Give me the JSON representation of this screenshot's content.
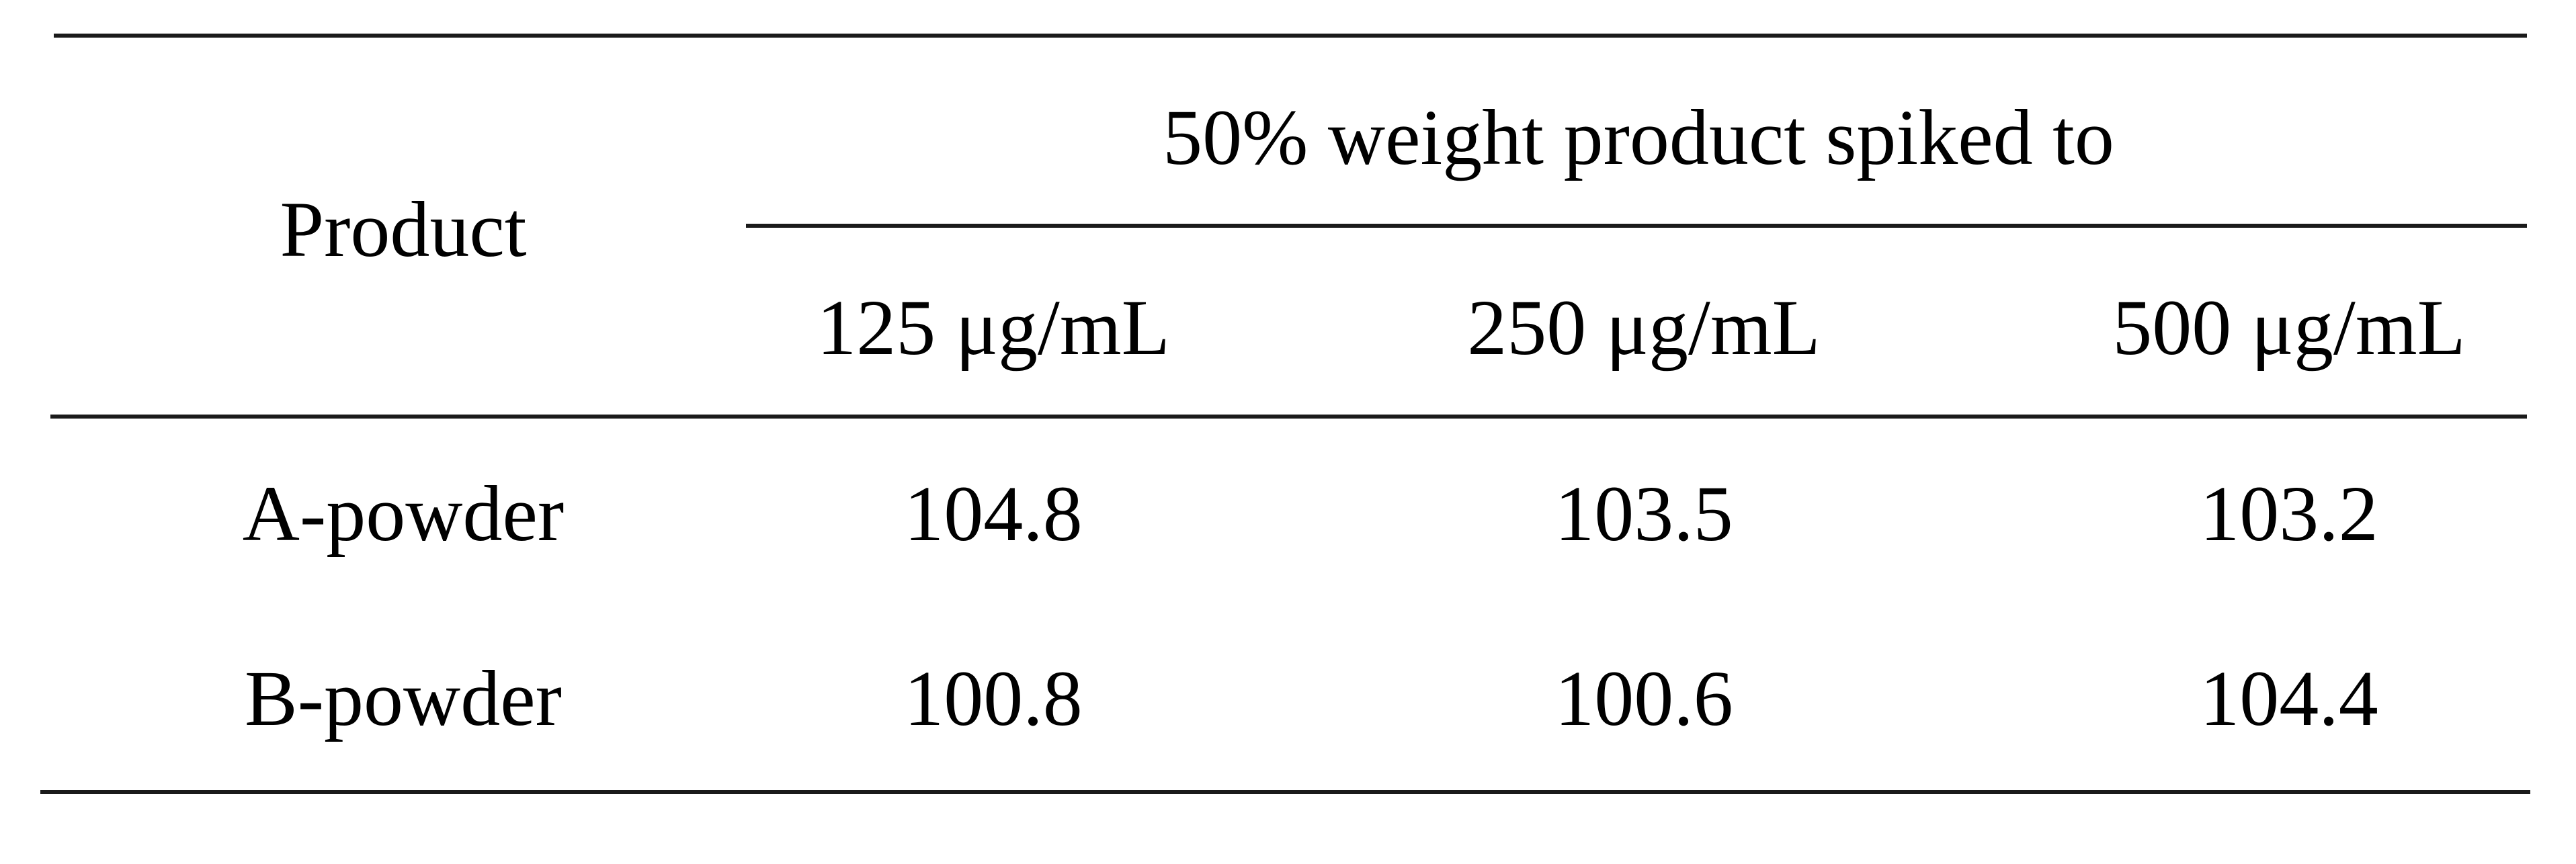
{
  "table": {
    "row_header_label": "Product",
    "group_header": "50% weight product spiked to",
    "columns": [
      "125 μg/mL",
      "250 μg/mL",
      "500 μg/mL"
    ],
    "rows": [
      {
        "product": "A-powder",
        "values": [
          "104.8",
          "103.5",
          "103.2"
        ]
      },
      {
        "product": "B-powder",
        "values": [
          "100.8",
          "100.6",
          "104.4"
        ]
      }
    ]
  }
}
